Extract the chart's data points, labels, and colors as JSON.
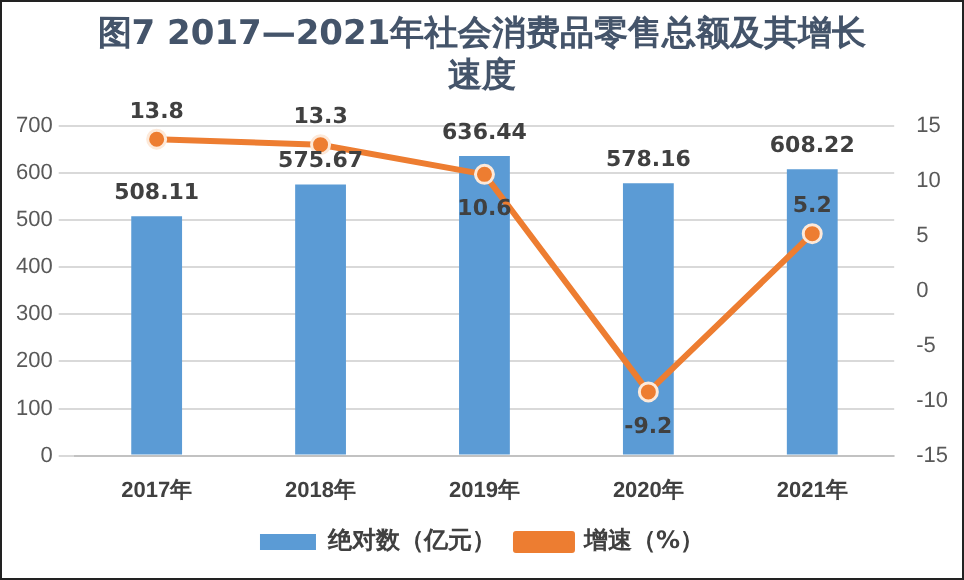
{
  "chart_data": {
    "type": "bar",
    "title": "图7 2017—2021年社会消费品零售总额及其增长速度",
    "categories": [
      "2017年",
      "2018年",
      "2019年",
      "2020年",
      "2021年"
    ],
    "series": [
      {
        "name": "绝对数（亿元）",
        "color": "#5b9bd5",
        "values": [
          508.11,
          575.67,
          636.44,
          578.16,
          608.22
        ]
      },
      {
        "name": "增速（%）",
        "type": "line",
        "axis": "y2",
        "color": "#ed7d31",
        "marker": "circle",
        "values": [
          13.8,
          13.3,
          10.6,
          -9.2,
          5.2
        ]
      }
    ],
    "ylim": [
      0,
      700
    ],
    "yticks": [
      0,
      100,
      200,
      300,
      400,
      500,
      600,
      700
    ],
    "y2lim": [
      -15,
      15
    ],
    "y2ticks": [
      -15,
      -10,
      -5,
      0,
      5,
      10,
      15
    ],
    "grid": "y",
    "legend": "bottom",
    "data_labels": true
  }
}
